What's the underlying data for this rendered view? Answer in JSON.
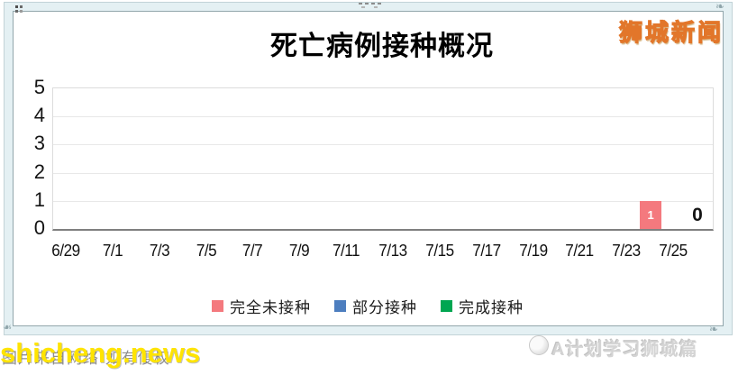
{
  "header": {
    "title": "死亡病例接种概况",
    "site_logo": "狮城新闻"
  },
  "chart_data": {
    "type": "bar",
    "title": "死亡病例接种概况",
    "xlabel": "",
    "ylabel": "",
    "ylim": [
      0,
      5
    ],
    "yticks": [
      0,
      1,
      2,
      3,
      4,
      5
    ],
    "grid": true,
    "legend_position": "bottom",
    "x_domain_note": "daily dates from 6/29 to 7/26, tick labels every 2 days",
    "x_tick_labels": [
      "6/29",
      "7/1",
      "7/3",
      "7/5",
      "7/7",
      "7/9",
      "7/11",
      "7/13",
      "7/15",
      "7/17",
      "7/19",
      "7/21",
      "7/23",
      "7/25"
    ],
    "series": [
      {
        "name": "完全未接种",
        "slug": "unvaccinated",
        "color": "#f4797e",
        "points": [
          {
            "date": "7/24",
            "value": 1,
            "label": "1",
            "label_color": "#ffffff"
          }
        ],
        "all_other_values": 0
      },
      {
        "name": "部分接种",
        "slug": "partially-vaccinated",
        "color": "#4d7ebf",
        "points": [],
        "all_other_values": 0
      },
      {
        "name": "完成接种",
        "slug": "fully-vaccinated",
        "color": "#00a651",
        "points": [],
        "all_other_values": 0
      }
    ],
    "annotations": [
      {
        "date": "7/26",
        "value": 0,
        "label": "0"
      }
    ]
  },
  "watermarks": {
    "bottom_left_overlay": "shicheng.news",
    "bottom_left_caption": "图片来自网络·如有侵权",
    "bottom_right": "A计划学习狮城篇"
  },
  "colors": {
    "bar_red": "#f4797e",
    "legend_blue": "#4d7ebf",
    "legend_green": "#00a651",
    "frame_band": "#e4f0f3",
    "logo_yellow": "#ffe619",
    "logo_outline": "#e2762a",
    "watermark_yellow": "#ffe400",
    "axis_gray": "#7f7f7f"
  }
}
